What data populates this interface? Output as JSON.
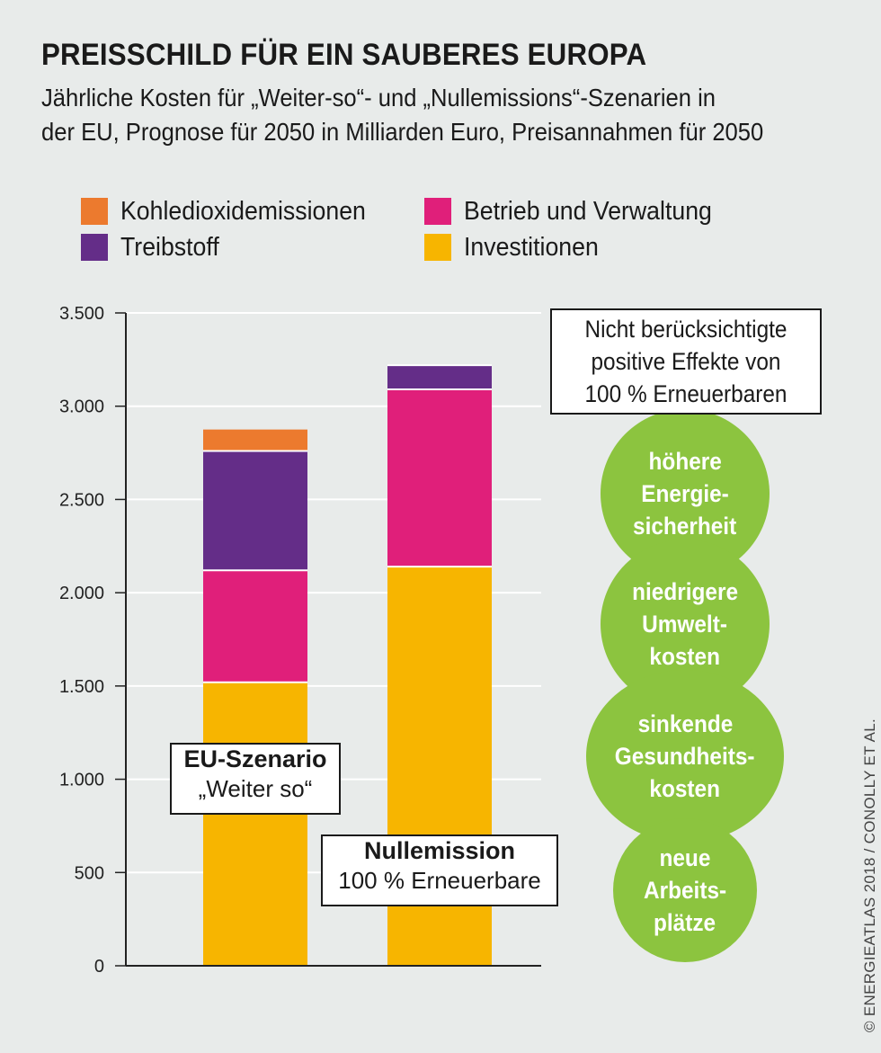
{
  "title": "PREISSCHILD FÜR EIN SAUBERES EUROPA",
  "subtitle": {
    "line1": "Jährliche Kosten für „Weiter-so“- und „Nullemissions“-Szenarien in",
    "line2": "der EU, Prognose für 2050 in Milliarden Euro, Preisannahmen für 2050"
  },
  "legend": [
    {
      "label": "Kohledioxidemissionen",
      "color": "#ec7a2e"
    },
    {
      "label": "Treibstoff",
      "color": "#642d88"
    },
    {
      "label": "Betrieb und Verwaltung",
      "color": "#e01f7a"
    },
    {
      "label": "Investitionen",
      "color": "#f7b500"
    }
  ],
  "chart_data": {
    "type": "bar",
    "stacked": true,
    "categories": [
      "EU-Szenario „Weiter so“",
      "Nullemission 100 % Erneuerbare"
    ],
    "series": [
      {
        "name": "Investitionen",
        "color": "#f7b500",
        "values": [
          1520,
          2140
        ]
      },
      {
        "name": "Betrieb und Verwaltung",
        "color": "#e01f7a",
        "values": [
          600,
          950
        ]
      },
      {
        "name": "Treibstoff",
        "color": "#642d88",
        "values": [
          640,
          130
        ]
      },
      {
        "name": "Kohledioxidemissionen",
        "color": "#ec7a2e",
        "values": [
          115,
          0
        ]
      }
    ],
    "ylim": [
      0,
      3500
    ],
    "yticks": [
      0,
      500,
      1000,
      1500,
      2000,
      2500,
      3000,
      3500
    ],
    "ytick_labels": [
      "0",
      "500",
      "1.000",
      "1.500",
      "2.000",
      "2.500",
      "3.000",
      "3.500"
    ],
    "grid": true,
    "legend_position": "top"
  },
  "bar_labels": [
    {
      "strong": "EU-Szenario",
      "normal": "„Weiter so“"
    },
    {
      "strong": "Nullemission",
      "normal": "100 % Erneuerbare"
    }
  ],
  "effects": {
    "header": [
      "Nicht berücksichtigte",
      "positive Effekte von",
      "100 % Erneuerbaren"
    ],
    "bubbles": [
      [
        "höhere",
        "Energie-",
        "sicherheit"
      ],
      [
        "niedrigere",
        "Umwelt-",
        "kosten"
      ],
      [
        "sinkende",
        "Gesundheits-",
        "kosten"
      ],
      [
        "neue",
        "Arbeits-",
        "plätze"
      ]
    ],
    "color": "#8cc43f"
  },
  "credit": "ENERGIEATLAS 2018 / CONOLLY ET AL."
}
